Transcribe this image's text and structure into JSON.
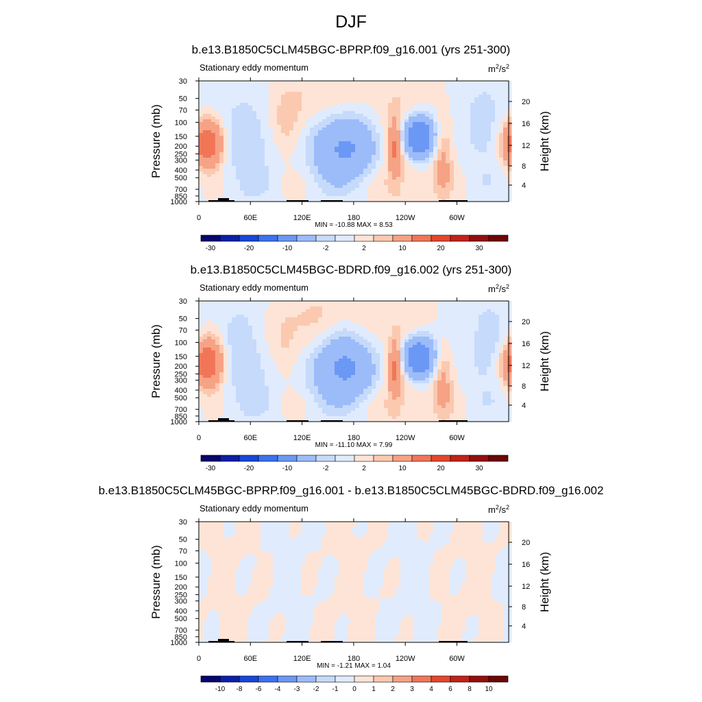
{
  "figure": {
    "title": "DJF"
  },
  "palette_colors": [
    "#06066e",
    "#0b1fa8",
    "#1846d6",
    "#3c71ee",
    "#6b98f5",
    "#9cbcf9",
    "#c6dafb",
    "#e0ebfd",
    "#fde4d6",
    "#fbc9b0",
    "#f6a285",
    "#f17658",
    "#e2472d",
    "#c12219",
    "#940f0d",
    "#6b0707"
  ],
  "chart_data": [
    {
      "type": "heatmap",
      "title": "b.e13.B1850C5CLM45BGC-BPRP.f09_g16.001 (yrs 251-300)",
      "left_label": "Stationary eddy momentum",
      "units_base": "m",
      "units_exp1": "2",
      "units_mid": "/s",
      "units_exp2": "2",
      "ylabel": "Pressure (mb)",
      "y2label": "Height (km)",
      "xticks": [
        "0",
        "60E",
        "120E",
        "180",
        "120W",
        "60W"
      ],
      "yticks": [
        "30",
        "50",
        "70",
        "100",
        "150",
        "200",
        "250",
        "300",
        "400",
        "500",
        "700",
        "850",
        "1000"
      ],
      "y2ticks": [
        "20",
        "16",
        "12",
        "8",
        "4"
      ],
      "minmax": "MIN = -10.88  MAX =   8.53",
      "colorbar_labels": [
        "-30",
        "-20",
        "-10",
        "-2",
        "2",
        "10",
        "20",
        "30"
      ],
      "contour_levels": [
        -30,
        -25,
        -20,
        -15,
        -10,
        -5,
        -2,
        -1,
        0,
        1,
        2,
        5,
        10,
        15,
        20,
        25,
        30
      ],
      "min": -10.88,
      "max": 8.53
    },
    {
      "type": "heatmap",
      "title": "b.e13.B1850C5CLM45BGC-BDRD.f09_g16.002 (yrs 251-300)",
      "left_label": "Stationary eddy momentum",
      "units_base": "m",
      "units_exp1": "2",
      "units_mid": "/s",
      "units_exp2": "2",
      "ylabel": "Pressure (mb)",
      "y2label": "Height (km)",
      "xticks": [
        "0",
        "60E",
        "120E",
        "180",
        "120W",
        "60W"
      ],
      "yticks": [
        "30",
        "50",
        "70",
        "100",
        "150",
        "200",
        "250",
        "300",
        "400",
        "500",
        "700",
        "850",
        "1000"
      ],
      "y2ticks": [
        "20",
        "16",
        "12",
        "8",
        "4"
      ],
      "minmax": "MIN = -11.10  MAX =   7.99",
      "colorbar_labels": [
        "-30",
        "-20",
        "-10",
        "-2",
        "2",
        "10",
        "20",
        "30"
      ],
      "contour_levels": [
        -30,
        -25,
        -20,
        -15,
        -10,
        -5,
        -2,
        -1,
        0,
        1,
        2,
        5,
        10,
        15,
        20,
        25,
        30
      ],
      "min": -11.1,
      "max": 7.99
    },
    {
      "type": "heatmap",
      "title": "b.e13.B1850C5CLM45BGC-BPRP.f09_g16.001 - b.e13.B1850C5CLM45BGC-BDRD.f09_g16.002",
      "left_label": "Stationary eddy momentum",
      "units_base": "m",
      "units_exp1": "2",
      "units_mid": "/s",
      "units_exp2": "2",
      "ylabel": "Pressure (mb)",
      "y2label": "Height (km)",
      "xticks": [
        "0",
        "60E",
        "120E",
        "180",
        "120W",
        "60W"
      ],
      "yticks": [
        "30",
        "50",
        "70",
        "100",
        "150",
        "200",
        "250",
        "300",
        "400",
        "500",
        "700",
        "850",
        "1000"
      ],
      "y2ticks": [
        "20",
        "16",
        "12",
        "8",
        "4"
      ],
      "minmax": "MIN =  -1.21  MAX =   1.04",
      "colorbar_labels": [
        "-10",
        "-8",
        "-6",
        "-4",
        "-3",
        "-2",
        "-1",
        "0",
        "1",
        "2",
        "3",
        "4",
        "6",
        "8",
        "10"
      ],
      "contour_levels": [
        -12,
        -10,
        -8,
        -6,
        -4,
        -3,
        -2,
        -1,
        0,
        1,
        2,
        3,
        4,
        6,
        8,
        10,
        12
      ],
      "min": -1.21,
      "max": 1.04
    }
  ]
}
